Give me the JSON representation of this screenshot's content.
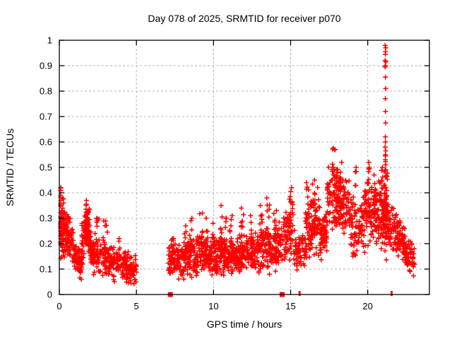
{
  "chart_data": {
    "type": "scatter",
    "title": "Day 078 of 2025, SRMTID for receiver p070",
    "xlabel": "GPS time / hours",
    "ylabel": "SRMTID / TECUs",
    "xlim": [
      0,
      24
    ],
    "ylim": [
      0,
      1
    ],
    "xticks": [
      0,
      5,
      10,
      15,
      20
    ],
    "xtick_labels": [
      "0",
      "5",
      "10",
      "15",
      "20"
    ],
    "yticks": [
      0,
      0.1,
      0.2,
      0.3,
      0.4,
      0.5,
      0.6,
      0.7,
      0.8,
      0.9,
      1
    ],
    "ytick_labels": [
      "0",
      "0.1",
      "0.2",
      "0.3",
      "0.4",
      "0.5",
      "0.6",
      "0.7",
      "0.8",
      "0.9",
      "1"
    ],
    "grid": "dashed-major-both-axes",
    "legend": "none",
    "marker": {
      "shape": "plus",
      "color": "#ff0000",
      "size": 7
    },
    "colors": {
      "points": "#ff0000",
      "grid": "#b3b3b3",
      "axis": "#000000",
      "background": "#ffffff"
    },
    "representation": "Dense 30s point cloud encoded as cluster envelopes (x range, centre line y0->y1, spread s, count n), narrow vertical peak columns, explicit outlier points of the 21.1h spike, and markers on the y=0 axis.",
    "clusters": [
      {
        "x0": 0.0,
        "x1": 0.35,
        "n": 70,
        "y0": 0.27,
        "y1": 0.27,
        "s": 0.095
      },
      {
        "x0": 0.35,
        "x1": 0.95,
        "n": 80,
        "y0": 0.26,
        "y1": 0.2,
        "s": 0.07
      },
      {
        "x0": 0.95,
        "x1": 1.45,
        "n": 60,
        "y0": 0.15,
        "y1": 0.13,
        "s": 0.05
      },
      {
        "x0": 1.45,
        "x1": 1.75,
        "n": 50,
        "y0": 0.18,
        "y1": 0.27,
        "s": 0.07
      },
      {
        "x0": 1.75,
        "x1": 2.0,
        "n": 45,
        "y0": 0.29,
        "y1": 0.21,
        "s": 0.07
      },
      {
        "x0": 2.0,
        "x1": 2.55,
        "n": 60,
        "y0": 0.17,
        "y1": 0.15,
        "s": 0.06
      },
      {
        "x0": 2.55,
        "x1": 3.15,
        "n": 55,
        "y0": 0.14,
        "y1": 0.17,
        "s": 0.06
      },
      {
        "x0": 3.15,
        "x1": 4.2,
        "n": 80,
        "y0": 0.13,
        "y1": 0.11,
        "s": 0.05
      },
      {
        "x0": 4.2,
        "x1": 5.0,
        "n": 70,
        "y0": 0.11,
        "y1": 0.1,
        "s": 0.05
      },
      {
        "x0": 7.05,
        "x1": 7.6,
        "n": 50,
        "y0": 0.14,
        "y1": 0.14,
        "s": 0.05
      },
      {
        "x0": 7.6,
        "x1": 8.3,
        "n": 70,
        "y0": 0.13,
        "y1": 0.13,
        "s": 0.05
      },
      {
        "x0": 8.3,
        "x1": 9.0,
        "n": 70,
        "y0": 0.15,
        "y1": 0.15,
        "s": 0.06
      },
      {
        "x0": 9.0,
        "x1": 9.7,
        "n": 70,
        "y0": 0.16,
        "y1": 0.15,
        "s": 0.06
      },
      {
        "x0": 9.7,
        "x1": 10.3,
        "n": 70,
        "y0": 0.15,
        "y1": 0.15,
        "s": 0.055
      },
      {
        "x0": 10.3,
        "x1": 10.9,
        "n": 70,
        "y0": 0.16,
        "y1": 0.15,
        "s": 0.06
      },
      {
        "x0": 10.9,
        "x1": 11.5,
        "n": 70,
        "y0": 0.15,
        "y1": 0.15,
        "s": 0.05
      },
      {
        "x0": 11.5,
        "x1": 12.2,
        "n": 75,
        "y0": 0.15,
        "y1": 0.16,
        "s": 0.06
      },
      {
        "x0": 12.2,
        "x1": 12.9,
        "n": 70,
        "y0": 0.16,
        "y1": 0.17,
        "s": 0.06
      },
      {
        "x0": 12.9,
        "x1": 13.7,
        "n": 75,
        "y0": 0.17,
        "y1": 0.18,
        "s": 0.07
      },
      {
        "x0": 13.7,
        "x1": 14.5,
        "n": 70,
        "y0": 0.17,
        "y1": 0.21,
        "s": 0.07
      },
      {
        "x0": 14.5,
        "x1": 15.2,
        "n": 65,
        "y0": 0.24,
        "y1": 0.25,
        "s": 0.09
      },
      {
        "x0": 15.2,
        "x1": 15.9,
        "n": 55,
        "y0": 0.18,
        "y1": 0.17,
        "s": 0.06
      },
      {
        "x0": 15.9,
        "x1": 16.3,
        "n": 40,
        "y0": 0.24,
        "y1": 0.27,
        "s": 0.09
      },
      {
        "x0": 16.3,
        "x1": 16.9,
        "n": 65,
        "y0": 0.29,
        "y1": 0.28,
        "s": 0.1
      },
      {
        "x0": 16.9,
        "x1": 17.35,
        "n": 55,
        "y0": 0.23,
        "y1": 0.24,
        "s": 0.08
      },
      {
        "x0": 17.35,
        "x1": 18.1,
        "n": 85,
        "y0": 0.37,
        "y1": 0.39,
        "s": 0.1
      },
      {
        "x0": 18.1,
        "x1": 18.8,
        "n": 80,
        "y0": 0.37,
        "y1": 0.34,
        "s": 0.09
      },
      {
        "x0": 18.8,
        "x1": 19.4,
        "n": 50,
        "y0": 0.28,
        "y1": 0.25,
        "s": 0.09
      },
      {
        "x0": 19.4,
        "x1": 19.8,
        "n": 40,
        "y0": 0.25,
        "y1": 0.27,
        "s": 0.08
      },
      {
        "x0": 19.8,
        "x1": 20.2,
        "n": 45,
        "y0": 0.31,
        "y1": 0.33,
        "s": 0.1
      },
      {
        "x0": 20.2,
        "x1": 20.7,
        "n": 55,
        "y0": 0.34,
        "y1": 0.32,
        "s": 0.09
      },
      {
        "x0": 20.7,
        "x1": 21.05,
        "n": 55,
        "y0": 0.31,
        "y1": 0.33,
        "s": 0.11
      },
      {
        "x0": 21.05,
        "x1": 21.3,
        "n": 60,
        "y0": 0.33,
        "y1": 0.32,
        "s": 0.13
      },
      {
        "x0": 21.3,
        "x1": 21.9,
        "n": 55,
        "y0": 0.28,
        "y1": 0.25,
        "s": 0.07
      },
      {
        "x0": 21.9,
        "x1": 22.4,
        "n": 55,
        "y0": 0.23,
        "y1": 0.19,
        "s": 0.06
      },
      {
        "x0": 22.4,
        "x1": 23.05,
        "n": 60,
        "y0": 0.17,
        "y1": 0.13,
        "s": 0.05
      }
    ],
    "peaks": [
      {
        "x": 0.1,
        "w": 0.15,
        "base": 0.3,
        "top": 0.42,
        "n": 10
      },
      {
        "x": 1.85,
        "w": 0.12,
        "base": 0.22,
        "top": 0.37,
        "n": 12
      },
      {
        "x": 2.5,
        "w": 0.08,
        "base": 0.18,
        "top": 0.3,
        "n": 8
      },
      {
        "x": 2.95,
        "w": 0.1,
        "base": 0.16,
        "top": 0.29,
        "n": 8
      },
      {
        "x": 3.9,
        "w": 0.08,
        "base": 0.13,
        "top": 0.22,
        "n": 6
      },
      {
        "x": 7.35,
        "w": 0.08,
        "base": 0.15,
        "top": 0.22,
        "n": 6
      },
      {
        "x": 8.15,
        "w": 0.08,
        "base": 0.15,
        "top": 0.27,
        "n": 7
      },
      {
        "x": 8.6,
        "w": 0.1,
        "base": 0.16,
        "top": 0.3,
        "n": 8
      },
      {
        "x": 9.2,
        "w": 0.1,
        "base": 0.17,
        "top": 0.32,
        "n": 9
      },
      {
        "x": 9.55,
        "w": 0.08,
        "base": 0.17,
        "top": 0.3,
        "n": 7
      },
      {
        "x": 10.0,
        "w": 0.08,
        "base": 0.16,
        "top": 0.28,
        "n": 6
      },
      {
        "x": 10.5,
        "w": 0.06,
        "base": 0.17,
        "top": 0.35,
        "n": 5
      },
      {
        "x": 10.8,
        "w": 0.08,
        "base": 0.16,
        "top": 0.3,
        "n": 6
      },
      {
        "x": 11.15,
        "w": 0.1,
        "base": 0.16,
        "top": 0.31,
        "n": 8
      },
      {
        "x": 11.85,
        "w": 0.1,
        "base": 0.17,
        "top": 0.34,
        "n": 9
      },
      {
        "x": 12.5,
        "w": 0.1,
        "base": 0.18,
        "top": 0.31,
        "n": 8
      },
      {
        "x": 13.1,
        "w": 0.1,
        "base": 0.19,
        "top": 0.35,
        "n": 8
      },
      {
        "x": 13.55,
        "w": 0.1,
        "base": 0.2,
        "top": 0.38,
        "n": 9
      },
      {
        "x": 14.0,
        "w": 0.1,
        "base": 0.19,
        "top": 0.33,
        "n": 8
      },
      {
        "x": 15.0,
        "w": 0.12,
        "base": 0.27,
        "top": 0.42,
        "n": 10
      },
      {
        "x": 16.1,
        "w": 0.1,
        "base": 0.28,
        "top": 0.44,
        "n": 8
      },
      {
        "x": 16.5,
        "w": 0.12,
        "base": 0.3,
        "top": 0.45,
        "n": 9
      },
      {
        "x": 17.8,
        "w": 0.1,
        "base": 0.4,
        "top": 0.575,
        "n": 10
      },
      {
        "x": 18.3,
        "w": 0.12,
        "base": 0.38,
        "top": 0.52,
        "n": 9
      },
      {
        "x": 19.2,
        "w": 0.08,
        "base": 0.3,
        "top": 0.5,
        "n": 7
      },
      {
        "x": 20.0,
        "w": 0.1,
        "base": 0.33,
        "top": 0.52,
        "n": 8
      },
      {
        "x": 20.45,
        "w": 0.1,
        "base": 0.35,
        "top": 0.47,
        "n": 8
      },
      {
        "x": 20.9,
        "w": 0.1,
        "base": 0.34,
        "top": 0.5,
        "n": 8
      },
      {
        "x": 21.15,
        "w": 0.06,
        "base": 0.1,
        "top": 0.55,
        "n": 14
      }
    ],
    "outlier_points": [
      [
        21.13,
        0.98
      ],
      [
        21.17,
        0.97
      ],
      [
        21.15,
        0.955
      ],
      [
        21.14,
        0.945
      ],
      [
        21.13,
        0.92
      ],
      [
        21.18,
        0.915
      ],
      [
        21.15,
        0.9
      ],
      [
        21.12,
        0.895
      ],
      [
        21.15,
        0.855
      ],
      [
        21.16,
        0.81
      ],
      [
        21.14,
        0.77
      ],
      [
        21.15,
        0.72
      ],
      [
        21.16,
        0.675
      ],
      [
        21.14,
        0.62
      ],
      [
        21.15,
        0.6
      ],
      [
        21.13,
        0.58
      ],
      [
        21.17,
        0.565
      ],
      [
        21.15,
        0.545
      ],
      [
        21.14,
        0.53
      ],
      [
        21.16,
        0.51
      ]
    ],
    "zero_axis_markers": {
      "squares_x": [
        7.2,
        14.45
      ],
      "bars_x": [
        15.55,
        15.62,
        21.52,
        21.58
      ]
    }
  }
}
